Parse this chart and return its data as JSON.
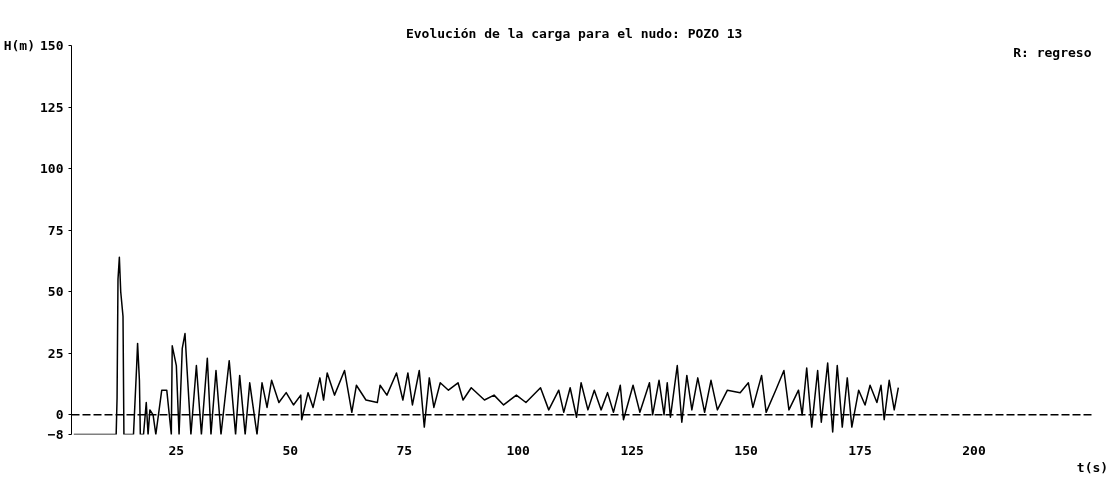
{
  "chart_data": {
    "type": "line",
    "title": "Evolución de la carga para el nudo:   POZO 13",
    "xlabel": "t(s)",
    "ylabel": "H(m)",
    "annotations": [
      "R: regreso"
    ],
    "xlim": [
      2,
      226
    ],
    "ylim": [
      -8,
      150
    ],
    "xticks": [
      25,
      50,
      75,
      100,
      125,
      150,
      175,
      200
    ],
    "yticks": [
      -8,
      0,
      25,
      50,
      75,
      100,
      125,
      150
    ],
    "grid": false,
    "line_style": "solid",
    "marker": "none",
    "ref_lines": [
      {
        "axis": "y",
        "value": 0,
        "color": "#000000",
        "line_style": "dashed"
      }
    ],
    "series": [
      {
        "color": "#000000",
        "x": [
          2.5,
          11.8,
          12.0,
          12.2,
          12.5,
          12.8,
          13.3,
          13.5,
          15.6,
          16.3,
          16.5,
          16.9,
          17.1,
          17.8,
          18.4,
          18.8,
          19.2,
          19.9,
          20.5,
          21.8,
          22.9,
          23.9,
          24.1,
          25.0,
          25.6,
          26.3,
          26.9,
          27.3,
          28.2,
          29.4,
          30.5,
          31.8,
          32.6,
          33.7,
          34.8,
          36.6,
          38.0,
          38.9,
          40.1,
          41.1,
          42.7,
          43.8,
          44.9,
          45.9,
          47.5,
          49.1,
          50.7,
          52.3,
          52.5,
          53.9,
          55.0,
          56.5,
          57.3,
          58.1,
          59.7,
          61.9,
          63.5,
          64.5,
          66.6,
          69.1,
          69.7,
          71.2,
          73.3,
          74.7,
          75.8,
          76.8,
          78.3,
          79.4,
          80.5,
          81.5,
          82.9,
          84.7,
          86.8,
          87.9,
          89.7,
          92.6,
          94.7,
          96.8,
          99.6,
          101.7,
          104.9,
          106.7,
          108.9,
          110.0,
          111.4,
          112.8,
          113.8,
          115.3,
          116.7,
          118.2,
          119.6,
          120.9,
          122.4,
          123.1,
          125.2,
          126.7,
          128.8,
          129.5,
          130.9,
          132.0,
          132.7,
          133.4,
          134.9,
          135.9,
          137.0,
          138.1,
          139.4,
          140.9,
          142.3,
          143.7,
          145.9,
          148.7,
          150.5,
          151.5,
          153.4,
          154.4,
          156.5,
          158.3,
          159.4,
          161.5,
          162.3,
          163.3,
          164.4,
          165.7,
          166.5,
          167.9,
          169.0,
          170.0,
          171.1,
          172.2,
          173.2,
          174.7,
          176.1,
          177.2,
          178.7,
          179.6,
          180.3,
          181.4,
          182.5,
          183.4
        ],
        "values": [
          -8,
          -8,
          7,
          55,
          64,
          50,
          40,
          -8,
          -8,
          20,
          29,
          14,
          -8,
          -8,
          5,
          -8,
          2,
          0,
          -8,
          10,
          10,
          -8,
          28,
          20,
          -8,
          27,
          33,
          20,
          -8,
          20,
          -8,
          23,
          -8,
          18,
          -8,
          22,
          -8,
          16,
          -8,
          13,
          -8,
          13,
          3,
          14,
          5,
          9,
          4,
          8,
          -2,
          9,
          3,
          15,
          6,
          17,
          8,
          18,
          1,
          12,
          6,
          5,
          12,
          8,
          17,
          6,
          17,
          4,
          18,
          -5,
          15,
          3,
          13,
          10,
          13,
          6,
          11,
          6,
          8,
          4,
          8,
          5,
          11,
          2,
          10,
          1,
          11,
          -1,
          13,
          2,
          10,
          2,
          9,
          1,
          12,
          -2,
          12,
          1,
          13,
          0,
          14,
          0,
          13,
          -1,
          20,
          -3,
          16,
          2,
          15,
          1,
          14,
          2,
          10,
          9,
          13,
          3,
          16,
          1,
          10,
          18,
          2,
          10,
          0,
          19,
          -5,
          18,
          -3,
          21,
          -7,
          20,
          -5,
          15,
          -5,
          10,
          4,
          12,
          5,
          12,
          -2,
          14,
          2,
          11
        ]
      }
    ]
  }
}
